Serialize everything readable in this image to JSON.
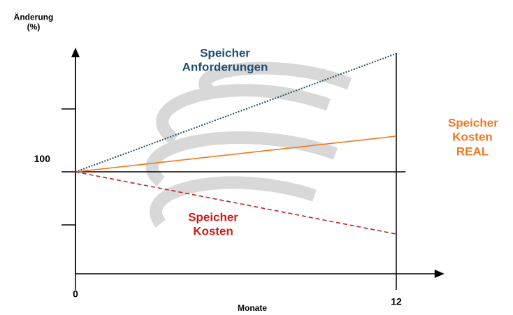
{
  "chart_data": {
    "type": "line",
    "y_label": "Änderung (%)",
    "x_label": "Monate",
    "x": [
      0,
      12
    ],
    "xlim": [
      0,
      13.8
    ],
    "xticks": [
      0,
      12
    ],
    "ylim": [
      0,
      222
    ],
    "yticks": [
      100
    ],
    "grid": true,
    "series": [
      {
        "name": "Speicher Anforderungen",
        "color": "#1f4e6e",
        "style": "dotted",
        "values": [
          100,
          216
        ]
      },
      {
        "name": "Speicher Kosten REAL",
        "color": "#f07820",
        "style": "solid",
        "values": [
          100,
          135
        ]
      },
      {
        "name": "Speicher Kosten",
        "color": "#c8201a",
        "style": "dashed",
        "values": [
          100,
          39
        ]
      }
    ]
  }
}
